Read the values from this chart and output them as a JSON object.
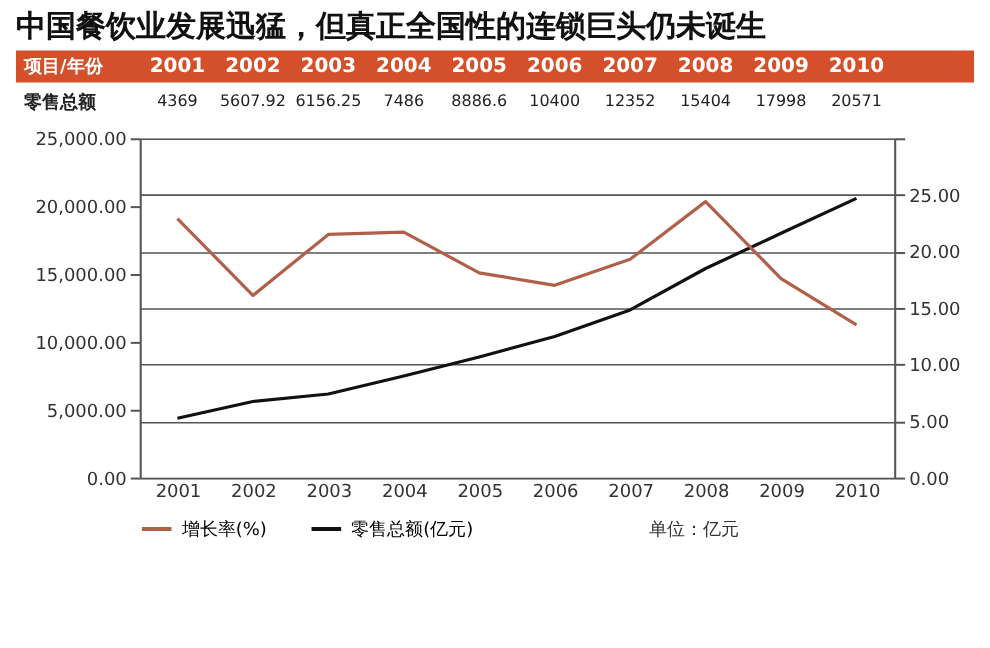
{
  "chart_data": {
    "type": "line",
    "title": "中国餐饮业发展迅猛，但真正全国性的连锁巨头仍未诞生",
    "categories": [
      "2001",
      "2002",
      "2003",
      "2004",
      "2005",
      "2006",
      "2007",
      "2008",
      "2009",
      "2010"
    ],
    "series": [
      {
        "name": "增长率(%)",
        "color": "#b0604a",
        "axis": "y2",
        "values": [
          22.9,
          16.1,
          21.5,
          21.7,
          18.1,
          17.0,
          19.3,
          24.4,
          17.6,
          13.5
        ]
      },
      {
        "name": "零售总额(亿元)",
        "color": "#111111",
        "axis": "y",
        "values": [
          4369,
          5607.92,
          6156.25,
          7486,
          8886.6,
          10400,
          12352,
          15404,
          17998,
          20571
        ],
        "value_labels": [
          "4369",
          "5607.92",
          "6156.25",
          "7486",
          "8886.6",
          "10400",
          "12352",
          "15404",
          "17998",
          "20571"
        ]
      }
    ],
    "ylim": [
      0,
      25000
    ],
    "yticks": [
      {
        "value": 0,
        "label": "0.00"
      },
      {
        "value": 5000,
        "label": "5,000.00"
      },
      {
        "value": 10000,
        "label": "10,000.00"
      },
      {
        "value": 15000,
        "label": "15,000.00"
      },
      {
        "value": 20000,
        "label": "20,000.00"
      },
      {
        "value": 25000,
        "label": "25,000.00"
      }
    ],
    "y2lim": [
      0,
      30
    ],
    "y2ticks": [
      {
        "value": 0,
        "label": "0.00"
      },
      {
        "value": 5,
        "label": "5.00"
      },
      {
        "value": 10,
        "label": "10.00"
      },
      {
        "value": 15,
        "label": "15.00"
      },
      {
        "value": 20,
        "label": "20.00"
      },
      {
        "value": 25,
        "label": "25.00"
      },
      {
        "value": 30,
        "label": null
      }
    ],
    "grid": "y",
    "legend": "bottom left",
    "marker": "none",
    "line_style": "solid",
    "annotations": [
      "项目/年份",
      "零售总额",
      "单位：亿元"
    ]
  }
}
